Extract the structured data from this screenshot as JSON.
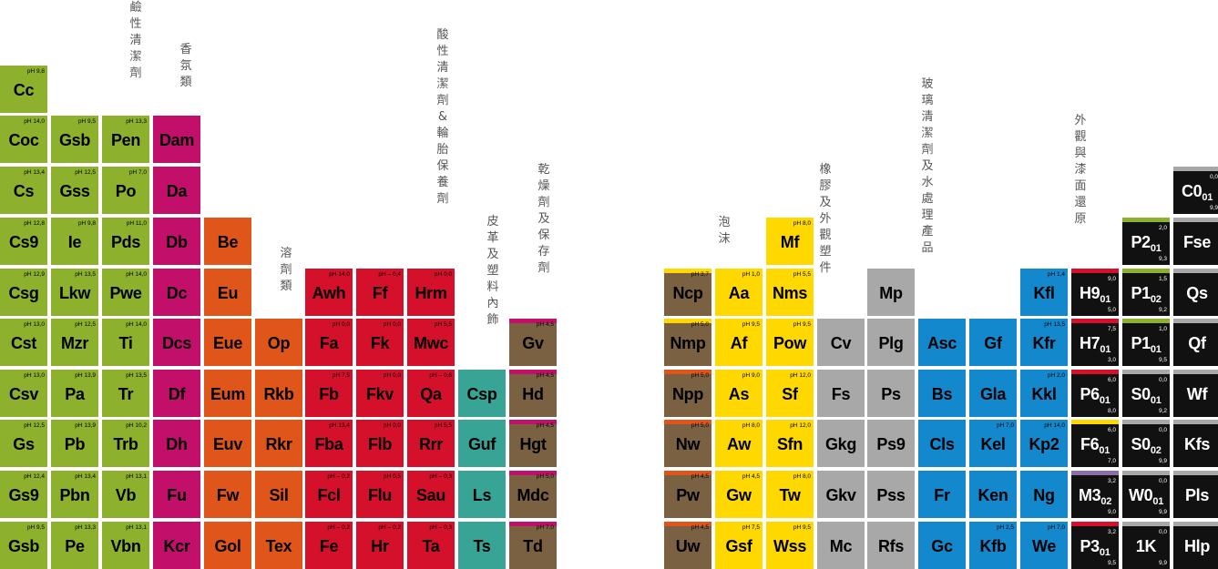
{
  "colors": {
    "green": "#8db02d",
    "magenta": "#c2106a",
    "orange": "#e0561a",
    "red": "#d4102a",
    "teal": "#38a495",
    "brown": "#7a6141",
    "yellow": "#ffd800",
    "grey": "#a8a8a8",
    "blue": "#1488cc",
    "black": "#111111"
  },
  "labels": [
    {
      "text": "鹼性清潔劑"
    },
    {
      "text": "香氛類"
    },
    {
      "text": "溶劑類"
    },
    {
      "text": "酸性清潔劑&輪胎保養劑"
    },
    {
      "text": "皮革及塑料內飾"
    },
    {
      "text": "乾燥劑及保存劑"
    },
    {
      "text": "泡沫"
    },
    {
      "text": "橡膠及外觀塑件"
    },
    {
      "text": "玻璃清潔劑及水處理產品"
    },
    {
      "text": "外觀與漆面還原"
    }
  ],
  "cells": [
    {
      "sym": "Cc",
      "ph": "pH 9,8",
      "color": "green"
    },
    {
      "sym": "Coc",
      "ph": "pH 14,0",
      "color": "green"
    },
    {
      "sym": "Cs",
      "ph": "pH 13,4",
      "color": "green"
    },
    {
      "sym": "Cs9",
      "ph": "pH 12,8",
      "color": "green"
    },
    {
      "sym": "Csg",
      "ph": "pH 12,9",
      "color": "green"
    },
    {
      "sym": "Cst",
      "ph": "pH 13,0",
      "color": "green"
    },
    {
      "sym": "Csv",
      "ph": "pH 13,0",
      "color": "green"
    },
    {
      "sym": "Gs",
      "ph": "pH 12,5",
      "color": "green"
    },
    {
      "sym": "Gs9",
      "ph": "pH 12,4",
      "color": "green"
    },
    {
      "sym": "Gsb",
      "ph": "pH 9,5",
      "color": "green"
    },
    {
      "sym": "Gsb",
      "ph": "pH 9,5",
      "color": "green"
    },
    {
      "sym": "Gss",
      "ph": "pH 12,5",
      "color": "green"
    },
    {
      "sym": "Ie",
      "ph": "pH 9,8",
      "color": "green"
    },
    {
      "sym": "Lkw",
      "ph": "pH 13,5",
      "color": "green"
    },
    {
      "sym": "Mzr",
      "ph": "pH 12,5",
      "color": "green"
    },
    {
      "sym": "Pa",
      "ph": "pH 13,9",
      "color": "green"
    },
    {
      "sym": "Pb",
      "ph": "pH 13,9",
      "color": "green"
    },
    {
      "sym": "Pbn",
      "ph": "pH 13,4",
      "color": "green"
    },
    {
      "sym": "Pe",
      "ph": "pH 13,3",
      "color": "green"
    },
    {
      "sym": "Pen",
      "ph": "pH 13,3",
      "color": "green"
    },
    {
      "sym": "Po",
      "ph": "pH 7,0",
      "color": "green"
    },
    {
      "sym": "Pds",
      "ph": "pH 11,0",
      "color": "green"
    },
    {
      "sym": "Pwe",
      "ph": "pH 14,0",
      "color": "green"
    },
    {
      "sym": "Ti",
      "ph": "pH 14,0",
      "color": "green"
    },
    {
      "sym": "Tr",
      "ph": "pH 13,5",
      "color": "green"
    },
    {
      "sym": "Trb",
      "ph": "pH 10,2",
      "color": "green"
    },
    {
      "sym": "Vb",
      "ph": "pH 13,1",
      "color": "green"
    },
    {
      "sym": "Vbn",
      "ph": "pH 13,1",
      "color": "green"
    },
    {
      "sym": "Dam",
      "ph": "",
      "color": "magenta"
    },
    {
      "sym": "Da",
      "ph": "",
      "color": "magenta"
    },
    {
      "sym": "Db",
      "ph": "",
      "color": "magenta"
    },
    {
      "sym": "Dc",
      "ph": "",
      "color": "magenta"
    },
    {
      "sym": "Dcs",
      "ph": "",
      "color": "magenta"
    },
    {
      "sym": "Df",
      "ph": "",
      "color": "magenta"
    },
    {
      "sym": "Dh",
      "ph": "",
      "color": "magenta"
    },
    {
      "sym": "Fu",
      "ph": "",
      "color": "magenta"
    },
    {
      "sym": "Kcr",
      "ph": "",
      "color": "magenta"
    },
    {
      "sym": "Be",
      "ph": "",
      "color": "orange"
    },
    {
      "sym": "Eu",
      "ph": "",
      "color": "orange"
    },
    {
      "sym": "Eue",
      "ph": "",
      "color": "orange"
    },
    {
      "sym": "Eum",
      "ph": "",
      "color": "orange"
    },
    {
      "sym": "Euv",
      "ph": "",
      "color": "orange"
    },
    {
      "sym": "Fw",
      "ph": "",
      "color": "orange"
    },
    {
      "sym": "Gol",
      "ph": "",
      "color": "orange"
    },
    {
      "sym": "Op",
      "ph": "",
      "color": "orange"
    },
    {
      "sym": "Rkb",
      "ph": "",
      "color": "orange"
    },
    {
      "sym": "Rkr",
      "ph": "",
      "color": "orange"
    },
    {
      "sym": "Sil",
      "ph": "",
      "color": "orange"
    },
    {
      "sym": "Tex",
      "ph": "",
      "color": "orange"
    },
    {
      "sym": "Awh",
      "ph": "pH 14,0",
      "color": "red"
    },
    {
      "sym": "Fa",
      "ph": "pH 0,0",
      "color": "red"
    },
    {
      "sym": "Fb",
      "ph": "pH 7,5",
      "color": "red"
    },
    {
      "sym": "Fba",
      "ph": "pH 13,4",
      "color": "red"
    },
    {
      "sym": "Fcl",
      "ph": "pH – 0,2",
      "color": "red"
    },
    {
      "sym": "Fe",
      "ph": "pH – 0,2",
      "color": "red"
    },
    {
      "sym": "Ff",
      "ph": "pH – 0,4",
      "color": "red"
    },
    {
      "sym": "Fk",
      "ph": "pH 0,0",
      "color": "red"
    },
    {
      "sym": "Fkv",
      "ph": "pH 0,0",
      "color": "red"
    },
    {
      "sym": "Flb",
      "ph": "pH 0,0",
      "color": "red"
    },
    {
      "sym": "Flu",
      "ph": "pH 0,5",
      "color": "red"
    },
    {
      "sym": "Hr",
      "ph": "pH – 0,2",
      "color": "red"
    },
    {
      "sym": "Hrm",
      "ph": "pH 0,0",
      "color": "red"
    },
    {
      "sym": "Mwc",
      "ph": "pH 5,5",
      "color": "red"
    },
    {
      "sym": "Qa",
      "ph": "pH – 0,6",
      "color": "red"
    },
    {
      "sym": "Rrr",
      "ph": "pH 5,5",
      "color": "red"
    },
    {
      "sym": "Sau",
      "ph": "pH – 0,3",
      "color": "red"
    },
    {
      "sym": "Ta",
      "ph": "pH – 0,3",
      "color": "red"
    },
    {
      "sym": "Csp",
      "ph": "",
      "color": "teal"
    },
    {
      "sym": "Guf",
      "ph": "",
      "color": "teal"
    },
    {
      "sym": "Ls",
      "ph": "",
      "color": "teal"
    },
    {
      "sym": "Ts",
      "ph": "",
      "color": "teal"
    },
    {
      "sym": "Gv",
      "ph": "pH 4,5",
      "color": "brown"
    },
    {
      "sym": "Hd",
      "ph": "pH 4,5",
      "color": "brown"
    },
    {
      "sym": "Hgt",
      "ph": "pH 4,5",
      "color": "brown"
    },
    {
      "sym": "Mdc",
      "ph": "pH 5,0",
      "color": "brown"
    },
    {
      "sym": "Td",
      "ph": "pH 7,0",
      "color": "brown"
    },
    {
      "sym": "Ncp",
      "ph": "pH 3,7",
      "color": "brown"
    },
    {
      "sym": "Nmp",
      "ph": "pH 5,0",
      "color": "brown"
    },
    {
      "sym": "Npp",
      "ph": "pH 5,0",
      "color": "brown"
    },
    {
      "sym": "Nw",
      "ph": "pH 5,0",
      "color": "brown"
    },
    {
      "sym": "Pw",
      "ph": "pH 4,5",
      "color": "brown"
    },
    {
      "sym": "Uw",
      "ph": "pH 4,5",
      "color": "brown"
    },
    {
      "sym": "Aa",
      "ph": "pH 1,0",
      "color": "yellow"
    },
    {
      "sym": "Af",
      "ph": "pH 9,5",
      "color": "yellow"
    },
    {
      "sym": "As",
      "ph": "pH 9,0",
      "color": "yellow"
    },
    {
      "sym": "Aw",
      "ph": "pH 8,0",
      "color": "yellow"
    },
    {
      "sym": "Gw",
      "ph": "pH 4,5",
      "color": "yellow"
    },
    {
      "sym": "Gsf",
      "ph": "pH 7,5",
      "color": "yellow"
    },
    {
      "sym": "Mf",
      "ph": "pH 8,0",
      "color": "yellow"
    },
    {
      "sym": "Nms",
      "ph": "pH 5,5",
      "color": "yellow"
    },
    {
      "sym": "Pow",
      "ph": "pH 9,5",
      "color": "yellow"
    },
    {
      "sym": "Sf",
      "ph": "pH 12,0",
      "color": "yellow"
    },
    {
      "sym": "Sfn",
      "ph": "pH 12,0",
      "color": "yellow"
    },
    {
      "sym": "Tw",
      "ph": "pH 8,0",
      "color": "yellow"
    },
    {
      "sym": "Wss",
      "ph": "pH 9,5",
      "color": "yellow"
    },
    {
      "sym": "Cv",
      "ph": "",
      "color": "grey"
    },
    {
      "sym": "Fs",
      "ph": "",
      "color": "grey"
    },
    {
      "sym": "Gkg",
      "ph": "",
      "color": "grey"
    },
    {
      "sym": "Gkv",
      "ph": "",
      "color": "grey"
    },
    {
      "sym": "Mc",
      "ph": "",
      "color": "grey"
    },
    {
      "sym": "Mp",
      "ph": "",
      "color": "grey"
    },
    {
      "sym": "Plg",
      "ph": "",
      "color": "grey"
    },
    {
      "sym": "Ps",
      "ph": "",
      "color": "grey"
    },
    {
      "sym": "Ps9",
      "ph": "",
      "color": "grey"
    },
    {
      "sym": "Pss",
      "ph": "",
      "color": "grey"
    },
    {
      "sym": "Rfs",
      "ph": "",
      "color": "grey"
    },
    {
      "sym": "Asc",
      "ph": "",
      "color": "blue"
    },
    {
      "sym": "Bs",
      "ph": "",
      "color": "blue"
    },
    {
      "sym": "Cls",
      "ph": "",
      "color": "blue"
    },
    {
      "sym": "Fr",
      "ph": "",
      "color": "blue"
    },
    {
      "sym": "Gc",
      "ph": "",
      "color": "blue"
    },
    {
      "sym": "Gf",
      "ph": "",
      "color": "blue"
    },
    {
      "sym": "Gla",
      "ph": "",
      "color": "blue"
    },
    {
      "sym": "Kel",
      "ph": "pH 7,0",
      "color": "blue"
    },
    {
      "sym": "Ken",
      "ph": "",
      "color": "blue"
    },
    {
      "sym": "Kfb",
      "ph": "pH 2,5",
      "color": "blue"
    },
    {
      "sym": "Kfl",
      "ph": "pH 1,4",
      "color": "blue"
    },
    {
      "sym": "Kfr",
      "ph": "pH 13,5",
      "color": "blue"
    },
    {
      "sym": "Kkl",
      "ph": "pH 2,0",
      "color": "blue"
    },
    {
      "sym": "Kp2",
      "ph": "pH 14,0",
      "color": "blue"
    },
    {
      "sym": "Ng",
      "ph": "",
      "color": "blue"
    },
    {
      "sym": "We",
      "ph": "pH 7,0",
      "color": "blue"
    },
    {
      "sym": "H9",
      "sub": "01",
      "ph": "9,0",
      "ph2": "5,0",
      "color": "black",
      "strip": "#d4102a"
    },
    {
      "sym": "H7",
      "sub": "01",
      "ph": "7,5",
      "ph2": "3,0",
      "color": "black",
      "strip": "#d4102a"
    },
    {
      "sym": "P6",
      "sub": "01",
      "ph": "6,0",
      "ph2": "8,0",
      "color": "black",
      "strip": "#d4102a"
    },
    {
      "sym": "F6",
      "sub": "01",
      "ph": "6,0",
      "ph2": "7,0",
      "color": "black",
      "strip": "#ffd800"
    },
    {
      "sym": "M3",
      "sub": "02",
      "ph": "3,2",
      "ph2": "9,0",
      "color": "black",
      "strip": "#8a6fa8"
    },
    {
      "sym": "P3",
      "sub": "01",
      "ph": "3,2",
      "ph2": "9,5",
      "color": "black",
      "strip": "#d4102a"
    },
    {
      "sym": "P2",
      "sub": "01",
      "ph": "2,0",
      "ph2": "9,3",
      "color": "black",
      "strip": "#8db02d"
    },
    {
      "sym": "P1",
      "sub": "02",
      "ph": "1,5",
      "ph2": "9,2",
      "color": "black",
      "strip": "#8db02d"
    },
    {
      "sym": "P1",
      "sub": "01",
      "ph": "1,0",
      "ph2": "9,5",
      "color": "black",
      "strip": "#8db02d"
    },
    {
      "sym": "S0",
      "sub": "01",
      "ph": "0,0",
      "ph2": "9,2",
      "color": "black",
      "strip": "#a8a8a8"
    },
    {
      "sym": "S0",
      "sub": "02",
      "ph": "0,0",
      "ph2": "9,9",
      "color": "black",
      "strip": "#a8a8a8"
    },
    {
      "sym": "W0",
      "sub": "01",
      "ph": "0,0",
      "ph2": "9,9",
      "color": "black",
      "strip": "#a8a8a8"
    },
    {
      "sym": "1K",
      "ph": "0,0",
      "ph2": "9,9",
      "color": "black",
      "strip": "#a8a8a8"
    },
    {
      "sym": "C0",
      "sub": "01",
      "ph": "0,0",
      "ph2": "9,9",
      "color": "black",
      "strip": "#a8a8a8"
    },
    {
      "sym": "Fse",
      "ph": "",
      "color": "black",
      "strip": "#a8a8a8"
    },
    {
      "sym": "Qs",
      "ph": "",
      "color": "black",
      "strip": "#a8a8a8"
    },
    {
      "sym": "Qf",
      "ph": "",
      "color": "black",
      "strip": "#a8a8a8"
    },
    {
      "sym": "Wf",
      "ph": "",
      "color": "black",
      "strip": "#a8a8a8"
    },
    {
      "sym": "Kfs",
      "ph": "",
      "color": "black",
      "strip": "#a8a8a8"
    },
    {
      "sym": "Pls",
      "ph": "",
      "color": "black",
      "strip": "#a8a8a8"
    },
    {
      "sym": "Hlp",
      "ph": "",
      "color": "black",
      "strip": "#a8a8a8"
    }
  ]
}
